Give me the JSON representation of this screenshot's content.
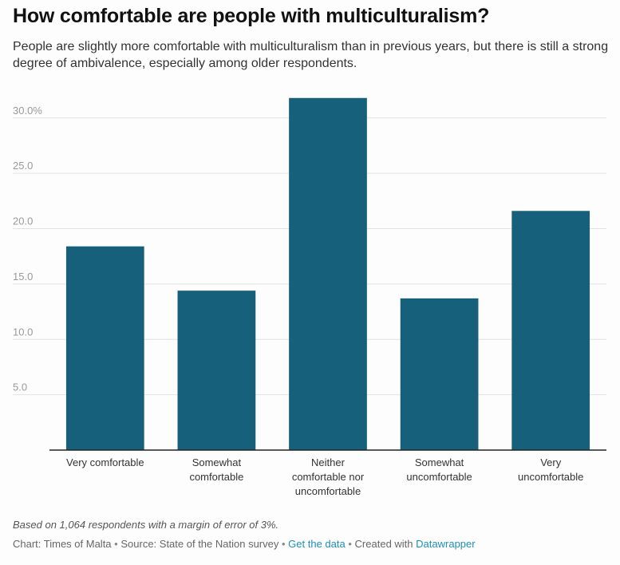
{
  "header": {
    "title": "How comfortable are people with multiculturalism?",
    "subtitle": "People are slightly more comfortable with multiculturalism than in previous years, but there is still a strong degree of ambivalence, especially among older respondents."
  },
  "chart_data": {
    "type": "bar",
    "categories": [
      [
        "Very comfortable"
      ],
      [
        "Somewhat",
        "comfortable"
      ],
      [
        "Neither",
        "comfortable nor",
        "uncomfortable"
      ],
      [
        "Somewhat",
        "uncomfortable"
      ],
      [
        "Very",
        "uncomfortable"
      ]
    ],
    "values": [
      18.4,
      14.4,
      31.8,
      13.7,
      21.6
    ],
    "yticks": [
      {
        "value": 5,
        "label": "5.0"
      },
      {
        "value": 10,
        "label": "10.0"
      },
      {
        "value": 15,
        "label": "15.0"
      },
      {
        "value": 20,
        "label": "20.0"
      },
      {
        "value": 25,
        "label": "25.0"
      },
      {
        "value": 30,
        "label": "30.0%"
      }
    ],
    "ylim": [
      0,
      32
    ],
    "grid": true,
    "bar_color": "#17607b",
    "xlabel": "",
    "ylabel": ""
  },
  "footer": {
    "note": "Based on 1,064 respondents with a margin of error of 3%.",
    "credit": "Chart: Times of Malta",
    "source": "Source: State of the Nation survey",
    "get_data": "Get the data",
    "created_with": "Created with",
    "tool": "Datawrapper",
    "separator": "•",
    "link_color": "#1d8fb8"
  }
}
